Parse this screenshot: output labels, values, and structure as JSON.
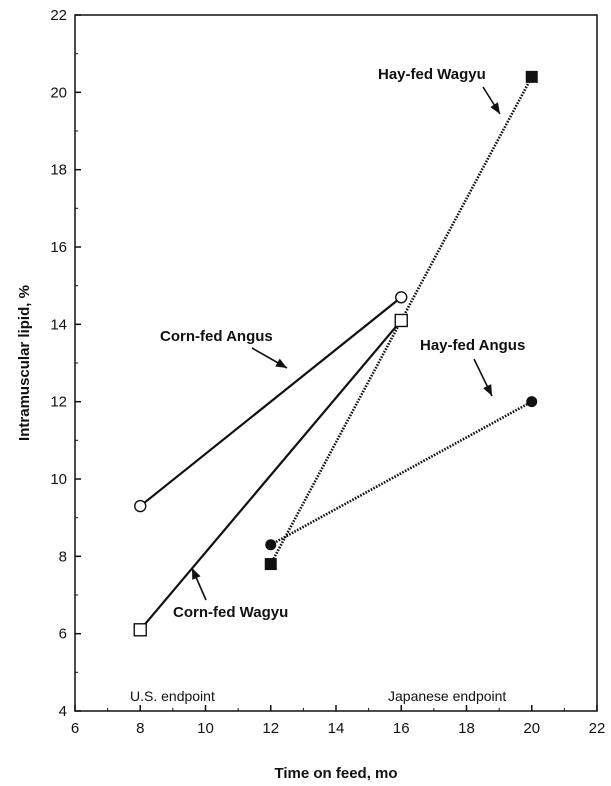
{
  "chart_data": {
    "type": "line",
    "xlabel": "Time on feed, mo",
    "ylabel": "Intramuscular lipid, %",
    "xlim": [
      6,
      22
    ],
    "ylim": [
      4,
      22
    ],
    "x_ticks": [
      6,
      8,
      10,
      12,
      14,
      16,
      18,
      20,
      22
    ],
    "y_ticks": [
      4,
      6,
      8,
      10,
      12,
      14,
      16,
      18,
      20,
      22
    ],
    "grid": false,
    "series": [
      {
        "name": "Corn-fed Angus",
        "marker": "open-circle",
        "line": "solid",
        "points": [
          {
            "x": 8,
            "y": 9.3
          },
          {
            "x": 16,
            "y": 14.7
          }
        ]
      },
      {
        "name": "Corn-fed Wagyu",
        "marker": "open-square",
        "line": "solid",
        "points": [
          {
            "x": 8,
            "y": 6.1
          },
          {
            "x": 16,
            "y": 14.1
          }
        ]
      },
      {
        "name": "Hay-fed Angus",
        "marker": "filled-circle",
        "line": "dotted",
        "points": [
          {
            "x": 12,
            "y": 8.3
          },
          {
            "x": 20,
            "y": 12.0
          }
        ]
      },
      {
        "name": "Hay-fed Wagyu",
        "marker": "filled-square",
        "line": "dotted",
        "points": [
          {
            "x": 12,
            "y": 7.8
          },
          {
            "x": 20,
            "y": 20.4
          }
        ]
      }
    ],
    "annotations": [
      {
        "text": "U.S. endpoint"
      },
      {
        "text": "Japanese endpoint"
      }
    ]
  }
}
